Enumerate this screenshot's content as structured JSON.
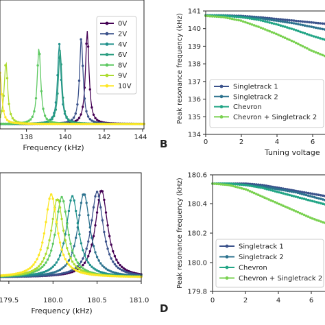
{
  "chart_data": [
    {
      "id": "A",
      "type": "line",
      "panel_label": "",
      "xlabel": "Frequency (kHz)",
      "ylabel": "",
      "xlim": [
        135.5,
        144
      ],
      "x_ticks": [
        "138",
        "140",
        "142",
        "144"
      ],
      "y_ticks": [],
      "legend_position": "top-right",
      "series": [
        {
          "name": "0V",
          "color": "#440154",
          "peak_kHz": 140.65,
          "width_kHz": 0.25,
          "amplitude": 1.0
        },
        {
          "name": "2V",
          "color": "#3b528b",
          "peak_kHz": 140.3,
          "width_kHz": 0.25,
          "amplitude": 0.93
        },
        {
          "name": "4V",
          "color": "#21918c",
          "peak_kHz": 139.0,
          "width_kHz": 0.25,
          "amplitude": 0.86
        },
        {
          "name": "6V",
          "color": "#2a9d80",
          "peak_kHz": 139.05,
          "width_kHz": 0.25,
          "amplitude": 0.8
        },
        {
          "name": "8V",
          "color": "#5ec962",
          "peak_kHz": 137.8,
          "width_kHz": 0.25,
          "amplitude": 0.82
        },
        {
          "name": "9V",
          "color": "#addc30",
          "peak_kHz": 135.85,
          "width_kHz": 0.25,
          "amplitude": 0.67
        },
        {
          "name": "10V",
          "color": "#fde725",
          "peak_kHz": 135.5,
          "width_kHz": 0.25,
          "amplitude": 0.55
        }
      ]
    },
    {
      "id": "B",
      "type": "line",
      "panel_label": "B",
      "xlabel": "Tuning voltage",
      "ylabel": "Peak resonance frequency (kHz)",
      "xlim": [
        0,
        7
      ],
      "ylim": [
        134,
        141
      ],
      "x_ticks": [
        "0",
        "2",
        "4",
        "6"
      ],
      "y_ticks": [
        "134",
        "135",
        "136",
        "137",
        "138",
        "139",
        "140",
        "141"
      ],
      "legend_position": "lower-left",
      "x": [
        0,
        1,
        2,
        3,
        4,
        5,
        6,
        7
      ],
      "series": [
        {
          "name": "Singletrack 1",
          "color": "#3b528b",
          "values": [
            140.75,
            140.75,
            140.72,
            140.65,
            140.55,
            140.45,
            140.35,
            140.25
          ]
        },
        {
          "name": "Singletrack 2",
          "color": "#2c728e",
          "values": [
            140.75,
            140.75,
            140.7,
            140.6,
            140.45,
            140.3,
            140.1,
            139.9
          ]
        },
        {
          "name": "Chevron",
          "color": "#21a585",
          "values": [
            140.75,
            140.73,
            140.65,
            140.5,
            140.25,
            139.95,
            139.6,
            139.3
          ]
        },
        {
          "name": "Chevron + Singletrack 2",
          "color": "#7ad151",
          "values": [
            140.72,
            140.65,
            140.45,
            140.1,
            139.7,
            139.25,
            138.75,
            138.35
          ]
        }
      ]
    },
    {
      "id": "C",
      "type": "line",
      "panel_label": "",
      "xlabel": "Frequency (kHz)",
      "ylabel": "",
      "xlim": [
        179.4,
        181.0
      ],
      "x_ticks": [
        "179.5",
        "180.0",
        "180.5",
        "181.0"
      ],
      "y_ticks": [],
      "legend_position": "none",
      "series": [
        {
          "name": "",
          "color": "#440154",
          "peak_kHz": 180.55,
          "width_kHz": 0.17,
          "amplitude": 1.0
        },
        {
          "name": "",
          "color": "#3b528b",
          "peak_kHz": 180.5,
          "width_kHz": 0.17,
          "amplitude": 0.98
        },
        {
          "name": "",
          "color": "#2c728e",
          "peak_kHz": 180.35,
          "width_kHz": 0.17,
          "amplitude": 0.96
        },
        {
          "name": "",
          "color": "#21918c",
          "peak_kHz": 180.22,
          "width_kHz": 0.17,
          "amplitude": 0.93
        },
        {
          "name": "",
          "color": "#5ec962",
          "peak_kHz": 180.1,
          "width_kHz": 0.17,
          "amplitude": 0.92
        },
        {
          "name": "",
          "color": "#addc30",
          "peak_kHz": 180.05,
          "width_kHz": 0.17,
          "amplitude": 0.9
        },
        {
          "name": "",
          "color": "#fde725",
          "peak_kHz": 179.98,
          "width_kHz": 0.17,
          "amplitude": 0.95
        }
      ]
    },
    {
      "id": "D",
      "type": "line",
      "panel_label": "D",
      "xlabel": "",
      "ylabel": "Peak resonance frequency (kHz)",
      "xlim": [
        0,
        7
      ],
      "ylim": [
        179.8,
        180.6
      ],
      "x_ticks": [
        "0",
        "2",
        "4",
        "6"
      ],
      "y_ticks": [
        "179.8",
        "180.0",
        "180.2",
        "180.4",
        "180.6"
      ],
      "legend_position": "lower-left",
      "x": [
        0,
        1,
        2,
        3,
        4,
        5,
        6,
        7
      ],
      "series": [
        {
          "name": "Singletrack 1",
          "color": "#3b528b",
          "values": [
            180.54,
            180.54,
            180.54,
            180.53,
            180.51,
            180.49,
            180.47,
            180.45
          ]
        },
        {
          "name": "Singletrack 2",
          "color": "#2c728e",
          "values": [
            180.54,
            180.54,
            180.53,
            180.52,
            180.5,
            180.48,
            180.45,
            180.42
          ]
        },
        {
          "name": "Chevron",
          "color": "#21a585",
          "values": [
            180.54,
            180.54,
            180.53,
            180.51,
            180.48,
            180.45,
            180.42,
            180.39
          ]
        },
        {
          "name": "Chevron + Singletrack 2",
          "color": "#7ad151",
          "values": [
            180.54,
            180.53,
            180.5,
            180.45,
            180.4,
            180.35,
            180.3,
            180.26
          ]
        }
      ]
    }
  ]
}
